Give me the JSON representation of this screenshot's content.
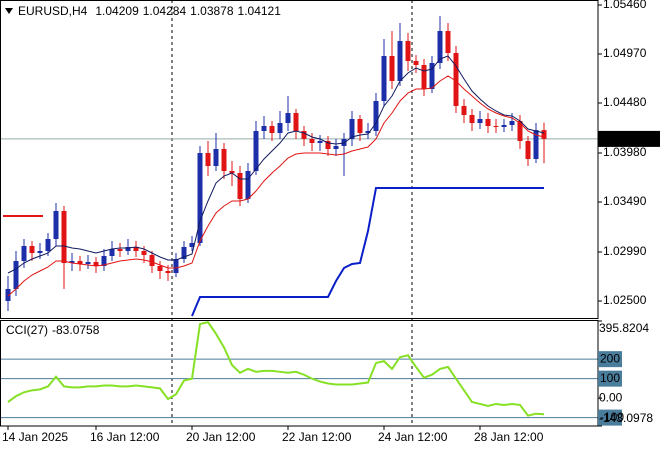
{
  "chart_data": [
    {
      "type": "candlestick",
      "symbol": "EURUSD,H4",
      "categories": [
        "14 Jan 2025",
        null,
        null,
        null,
        null,
        null,
        null,
        null,
        null,
        null,
        null,
        "16 Jan 12:00",
        null,
        null,
        null,
        null,
        null,
        null,
        null,
        null,
        null,
        null,
        null,
        "20 Jan 12:00",
        null,
        null,
        null,
        null,
        null,
        null,
        null,
        null,
        null,
        null,
        null,
        "22 Jan 12:00",
        null,
        null,
        null,
        null,
        null,
        null,
        null,
        null,
        null,
        null,
        null,
        "24 Jan 12:00",
        null,
        null,
        null,
        null,
        null,
        null,
        null,
        null,
        null,
        null,
        null,
        "28 Jan 12:00",
        null,
        null,
        null,
        null,
        null,
        null,
        null,
        null
      ],
      "open": [
        1.025,
        1.0262,
        1.029,
        1.0305,
        1.0298,
        1.03,
        1.0312,
        1.034,
        1.0288,
        1.029,
        1.0287,
        1.0289,
        1.0285,
        1.0295,
        1.0302,
        1.03,
        1.0304,
        1.03,
        1.0296,
        1.0285,
        1.028,
        1.0278,
        1.0292,
        1.0304,
        1.0308,
        1.0398,
        1.0385,
        1.0402,
        1.038,
        1.0378,
        1.0352,
        1.038,
        1.042,
        1.0425,
        1.0418,
        1.0428,
        1.0438,
        1.042,
        1.0412,
        1.0408,
        1.041,
        1.0402,
        1.0405,
        1.0412,
        1.0432,
        1.0418,
        1.042,
        1.045,
        1.0495,
        1.047,
        1.051,
        1.049,
        1.0486,
        1.0462,
        1.0488,
        1.052,
        1.0498,
        1.0445,
        1.0436,
        1.0428,
        1.0432,
        1.0425,
        1.0424,
        1.0426,
        1.043,
        1.041,
        1.0392,
        1.04209
      ],
      "high": [
        1.0275,
        1.03,
        1.0312,
        1.031,
        1.0308,
        1.0318,
        1.0348,
        1.0345,
        1.0298,
        1.0295,
        1.0296,
        1.0294,
        1.0302,
        1.031,
        1.0308,
        1.0312,
        1.031,
        1.0305,
        1.03,
        1.029,
        1.0286,
        1.0298,
        1.031,
        1.0315,
        1.0405,
        1.041,
        1.0418,
        1.0408,
        1.039,
        1.0385,
        1.0388,
        1.043,
        1.0435,
        1.043,
        1.044,
        1.0455,
        1.0442,
        1.0425,
        1.0418,
        1.0416,
        1.0415,
        1.0412,
        1.0418,
        1.044,
        1.0436,
        1.0428,
        1.0458,
        1.0512,
        1.052,
        1.0528,
        1.0518,
        1.0496,
        1.0492,
        1.0495,
        1.0535,
        1.0528,
        1.0505,
        1.0452,
        1.0442,
        1.044,
        1.0438,
        1.0432,
        1.0432,
        1.0438,
        1.0436,
        1.0415,
        1.0428,
        1.04284
      ],
      "low": [
        1.024,
        1.0255,
        1.0283,
        1.029,
        1.0292,
        1.0295,
        1.0305,
        1.0262,
        1.028,
        1.028,
        1.0282,
        1.0278,
        1.028,
        1.029,
        1.0294,
        1.0296,
        1.0294,
        1.0288,
        1.0278,
        1.0272,
        1.027,
        1.0274,
        1.0288,
        1.03,
        1.0305,
        1.0375,
        1.038,
        1.0372,
        1.0365,
        1.0345,
        1.0348,
        1.0376,
        1.0412,
        1.041,
        1.0412,
        1.042,
        1.0412,
        1.0405,
        1.04,
        1.04,
        1.0395,
        1.0395,
        1.0375,
        1.0405,
        1.041,
        1.0412,
        1.0415,
        1.0445,
        1.0462,
        1.0465,
        1.048,
        1.0478,
        1.0455,
        1.0458,
        1.0482,
        1.049,
        1.0438,
        1.0428,
        1.042,
        1.0422,
        1.0418,
        1.0418,
        1.0419,
        1.042,
        1.0402,
        1.0385,
        1.0388,
        1.03878
      ],
      "close": [
        1.0262,
        1.029,
        1.0305,
        1.0298,
        1.03,
        1.0312,
        1.034,
        1.0288,
        1.029,
        1.0287,
        1.0289,
        1.0285,
        1.0295,
        1.0302,
        1.03,
        1.0304,
        1.03,
        1.0296,
        1.0285,
        1.028,
        1.0278,
        1.0292,
        1.0304,
        1.0308,
        1.0398,
        1.0385,
        1.0402,
        1.038,
        1.0378,
        1.0352,
        1.038,
        1.042,
        1.0425,
        1.0418,
        1.0428,
        1.0438,
        1.042,
        1.0412,
        1.0408,
        1.041,
        1.0402,
        1.0405,
        1.0412,
        1.0432,
        1.0418,
        1.042,
        1.045,
        1.0495,
        1.047,
        1.051,
        1.049,
        1.0486,
        1.0462,
        1.0488,
        1.052,
        1.0498,
        1.0445,
        1.0436,
        1.0428,
        1.0432,
        1.0425,
        1.0424,
        1.0426,
        1.043,
        1.041,
        1.0392,
        1.04209,
        1.04121
      ],
      "up_color": "#1c2fa8",
      "down_color": "#e01414",
      "lines": [
        {
          "color": "#101a60",
          "values": [
            1.0278,
            1.0282,
            1.0288,
            1.0292,
            1.0295,
            1.0298,
            1.0305,
            1.0305,
            1.0303,
            1.0302,
            1.03,
            1.0298,
            1.03,
            1.0302,
            1.0303,
            1.0303,
            1.0304,
            1.0302,
            1.0298,
            1.0294,
            1.0291,
            1.0291,
            1.0294,
            1.0297,
            1.033,
            1.035,
            1.0368,
            1.0375,
            1.0378,
            1.0372,
            1.0372,
            1.0382,
            1.0392,
            1.04,
            1.0408,
            1.0418,
            1.042,
            1.0418,
            1.0414,
            1.0412,
            1.0408,
            1.0407,
            1.0408,
            1.0414,
            1.0416,
            1.0417,
            1.0428,
            1.0445,
            1.0455,
            1.047,
            1.0478,
            1.0483,
            1.048,
            1.0482,
            1.0492,
            1.0495,
            1.0485,
            1.0472,
            1.046,
            1.0452,
            1.0445,
            1.044,
            1.0436,
            1.0435,
            1.043,
            1.0422,
            1.042,
            1.0418
          ]
        },
        {
          "color": "#e01414",
          "values": [
            1.0255,
            1.0262,
            1.027,
            1.0276,
            1.028,
            1.0284,
            1.029,
            1.029,
            1.0288,
            1.0287,
            1.0286,
            1.0285,
            1.0286,
            1.0288,
            1.029,
            1.0291,
            1.0292,
            1.0291,
            1.0289,
            1.0286,
            1.0283,
            1.0283,
            1.0285,
            1.0288,
            1.031,
            1.0325,
            1.0338,
            1.0345,
            1.035,
            1.035,
            1.0352,
            1.036,
            1.037,
            1.0378,
            1.0385,
            1.0393,
            1.0397,
            1.0398,
            1.0398,
            1.0398,
            1.0397,
            1.0396,
            1.0397,
            1.04,
            1.0402,
            1.0404,
            1.0412,
            1.0428,
            1.0438,
            1.045,
            1.0458,
            1.0462,
            1.0462,
            1.0463,
            1.047,
            1.0475,
            1.047,
            1.0462,
            1.0455,
            1.0448,
            1.0442,
            1.0438,
            1.0435,
            1.0433,
            1.0428,
            1.042,
            1.0416,
            1.0414
          ]
        },
        {
          "color": "#0a1fc8",
          "width": 2,
          "values": [
            null,
            null,
            null,
            null,
            null,
            null,
            null,
            null,
            null,
            null,
            null,
            null,
            null,
            null,
            null,
            null,
            null,
            null,
            null,
            null,
            null,
            null,
            null,
            1.0235,
            1.0254,
            1.0254,
            1.0254,
            1.0254,
            1.0254,
            1.0254,
            1.0254,
            1.0254,
            1.0254,
            1.0254,
            1.0254,
            1.0254,
            1.0254,
            1.0254,
            1.0254,
            1.0254,
            1.0254,
            1.027,
            1.0283,
            1.0287,
            1.0288,
            1.032,
            1.0363,
            1.0363,
            1.0363,
            1.0363,
            1.0363,
            1.0363,
            1.0363,
            1.0363,
            1.0363,
            1.0363,
            1.0363,
            1.0363,
            1.0363,
            1.0363,
            1.0363,
            1.0363,
            1.0363,
            1.0363,
            1.0363,
            1.0363,
            1.0363,
            1.0363
          ]
        }
      ],
      "level": {
        "value": 1.0335,
        "color": "#e01414"
      },
      "ylim": [
        1.0233,
        1.0551
      ],
      "yticks": [
        {
          "value": 1.0546,
          "label": "1.05460"
        },
        {
          "value": 1.0497,
          "label": "1.04970"
        },
        {
          "value": 1.0448,
          "label": "1.04480"
        },
        {
          "value": 1.0398,
          "label": "1.03980"
        },
        {
          "value": 1.0349,
          "label": "1.03490"
        },
        {
          "value": 1.0299,
          "label": "1.02990"
        },
        {
          "value": 1.025,
          "label": "1.02500"
        }
      ]
    },
    {
      "type": "line",
      "name": "CCI(27)",
      "color": "#86e024",
      "values": [
        -20,
        10,
        30,
        40,
        45,
        60,
        110,
        60,
        55,
        55,
        60,
        60,
        65,
        65,
        60,
        60,
        65,
        60,
        55,
        50,
        -5,
        20,
        90,
        100,
        380,
        390,
        330,
        260,
        170,
        130,
        150,
        135,
        140,
        140,
        135,
        130,
        135,
        120,
        100,
        85,
        75,
        70,
        70,
        70,
        75,
        80,
        180,
        190,
        150,
        210,
        220,
        160,
        105,
        120,
        150,
        160,
        100,
        40,
        -20,
        -30,
        -40,
        -30,
        -35,
        -30,
        -35,
        -90,
        -80,
        -83.0758
      ],
      "ylim": [
        -143.0978,
        395.8204
      ],
      "yticks": [
        395.8204,
        {
          "value": 0,
          "label": "0.00"
        },
        -143.0978
      ],
      "levels": [
        200,
        100,
        -100
      ],
      "level_color": "#4a7c9b"
    }
  ]
}
